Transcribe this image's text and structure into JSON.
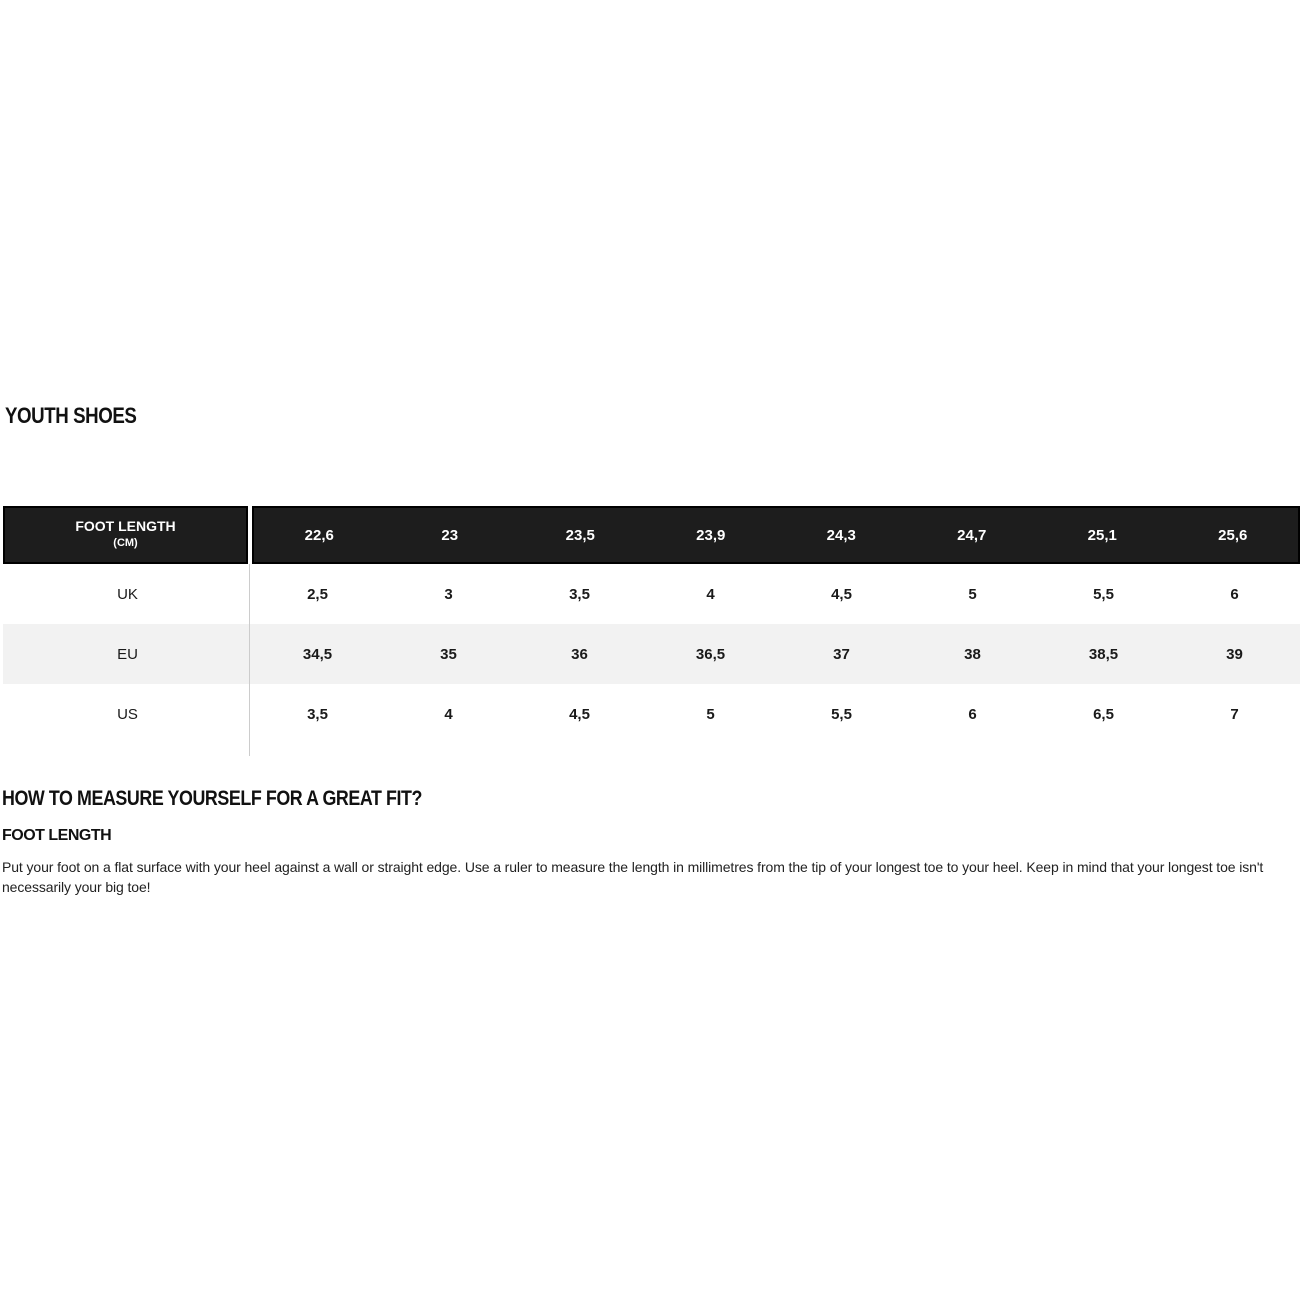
{
  "page": {
    "title": "YOUTH SHOES"
  },
  "size_table": {
    "header_label": "FOOT LENGTH",
    "header_sublabel": "(CM)",
    "foot_lengths_cm": [
      "22,6",
      "23",
      "23,5",
      "23,9",
      "24,3",
      "24,7",
      "25,1",
      "25,6"
    ],
    "rows": [
      {
        "label": "UK",
        "values": [
          "2,5",
          "3",
          "3,5",
          "4",
          "4,5",
          "5",
          "5,5",
          "6"
        ]
      },
      {
        "label": "EU",
        "values": [
          "34,5",
          "35",
          "36",
          "36,5",
          "37",
          "38",
          "38,5",
          "39"
        ]
      },
      {
        "label": "US",
        "values": [
          "3,5",
          "4",
          "4,5",
          "5",
          "5,5",
          "6",
          "6,5",
          "7"
        ]
      }
    ]
  },
  "measure_guide": {
    "heading": "HOW TO MEASURE YOURSELF FOR A GREAT FIT?",
    "subheading": "FOOT LENGTH",
    "body": "Put your foot on a flat surface with your heel against a wall or straight edge. Use a ruler to measure the length in millimetres from the tip of your longest toe to your heel. Keep in mind that your longest toe isn't necessarily your big toe!"
  },
  "colors": {
    "header_bg": "#1d1d1d",
    "header_border": "#000000",
    "header_text": "#ffffff",
    "row_alt_bg": "#f2f2f2",
    "divider": "#cccccc",
    "text": "#1a1a1a"
  }
}
